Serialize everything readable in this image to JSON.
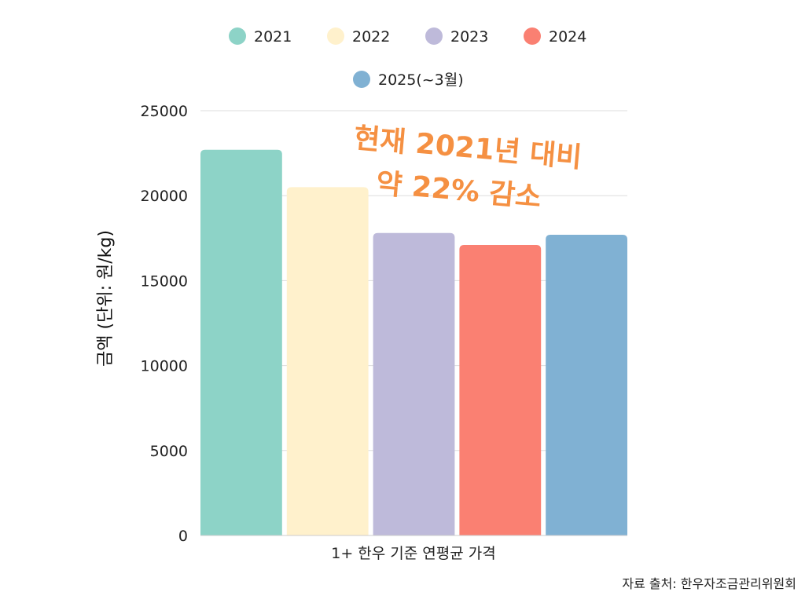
{
  "chart_data": {
    "type": "bar",
    "categories": [
      "1+ 한우 기준 연평균 가격"
    ],
    "series": [
      {
        "name": "2021",
        "values": [
          22700
        ],
        "color": "#8dd3c7"
      },
      {
        "name": "2022",
        "values": [
          20500
        ],
        "color": "#fff1cc"
      },
      {
        "name": "2023",
        "values": [
          17800
        ],
        "color": "#bebada"
      },
      {
        "name": "2024",
        "values": [
          17100
        ],
        "color": "#fa8072"
      },
      {
        "name": "2025(~3월)",
        "values": [
          17700
        ],
        "color": "#80b1d3"
      }
    ],
    "title": "",
    "xlabel": "",
    "ylabel": "금액 (단위: 원/kg)",
    "ylim": [
      0,
      25000
    ],
    "yticks": [
      0,
      5000,
      10000,
      15000,
      20000,
      25000
    ],
    "grid": true,
    "legend_placement": "top-center",
    "annotation": {
      "line1": "현재 2021년 대비",
      "line2": "약 22% 감소",
      "color": "#f59042"
    },
    "source": "자료 출처: 한우자조금관리위원회"
  }
}
